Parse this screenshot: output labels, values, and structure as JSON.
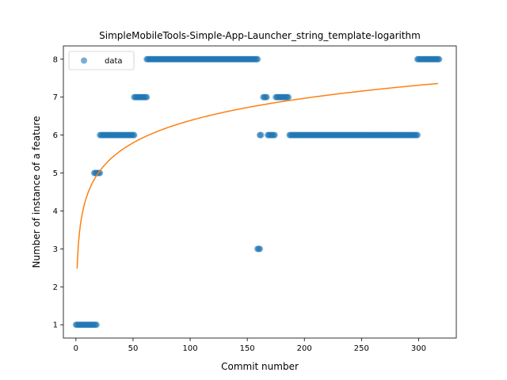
{
  "chart_data": {
    "type": "scatter",
    "title": "SimpleMobileTools-Simple-App-Launcher_string_template-logarithm",
    "xlabel": "Commit number",
    "ylabel": "Number of instance of a feature",
    "xlim": [
      -11,
      333
    ],
    "ylim": [
      0.65,
      8.35
    ],
    "xticks": [
      0,
      50,
      100,
      150,
      200,
      250,
      300
    ],
    "yticks": [
      1,
      2,
      3,
      4,
      5,
      6,
      7,
      8
    ],
    "grid": false,
    "legend": {
      "position": "top-left",
      "entries": [
        "data"
      ]
    },
    "colors": {
      "data": "#1f77b4",
      "fit": "#ff7f0e"
    },
    "series": [
      {
        "name": "data",
        "kind": "points",
        "segments": [
          {
            "x_start": 0,
            "x_end": 18,
            "y": 1
          },
          {
            "x_start": 16,
            "x_end": 21,
            "y": 5
          },
          {
            "x_start": 21,
            "x_end": 51,
            "y": 6
          },
          {
            "x_start": 51,
            "x_end": 62,
            "y": 7
          },
          {
            "x_start": 62,
            "x_end": 159,
            "y": 8
          },
          {
            "x_start": 159,
            "x_end": 161,
            "y": 3
          },
          {
            "x_start": 161,
            "x_end": 162,
            "y": 6
          },
          {
            "x_start": 164,
            "x_end": 167,
            "y": 7
          },
          {
            "x_start": 168,
            "x_end": 174,
            "y": 6
          },
          {
            "x_start": 175,
            "x_end": 186,
            "y": 7
          },
          {
            "x_start": 187,
            "x_end": 299,
            "y": 6
          },
          {
            "x_start": 299,
            "x_end": 318,
            "y": 8
          }
        ]
      },
      {
        "kind": "fit",
        "equation": {
          "form": "a + b*ln(x)",
          "a": 2.48,
          "b": 0.8474
        },
        "x_range": [
          1,
          317
        ]
      }
    ]
  }
}
